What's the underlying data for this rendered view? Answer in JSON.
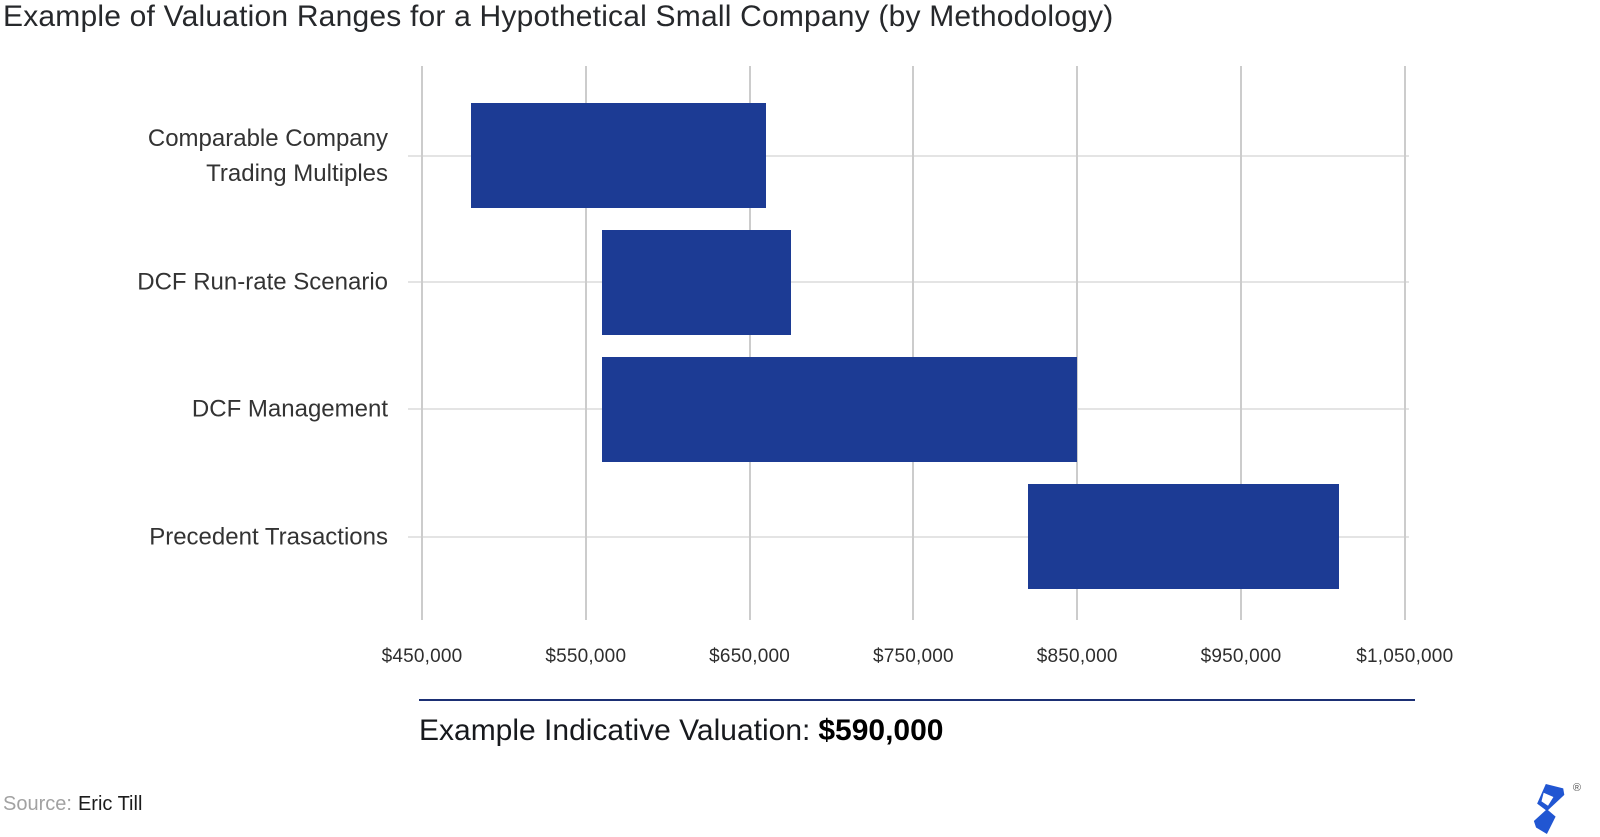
{
  "title": "Example of Valuation Ranges for a Hypothetical Small Company (by Methodology)",
  "chart_data": {
    "type": "bar",
    "subtype": "horizontal-range",
    "title": "Example of Valuation Ranges for a Hypothetical Small Company (by Methodology)",
    "categories": [
      "Comparable Company Trading Multiples",
      "DCF Run-rate Scenario",
      "DCF Management",
      "Precedent Trasactions"
    ],
    "ranges": [
      [
        480000,
        660000
      ],
      [
        560000,
        675000
      ],
      [
        560000,
        850000
      ],
      [
        820000,
        1010000
      ]
    ],
    "x_ticks": [
      {
        "value": 450000,
        "label": "$450,000"
      },
      {
        "value": 550000,
        "label": "$550,000"
      },
      {
        "value": 650000,
        "label": "$650,000"
      },
      {
        "value": 750000,
        "label": "$750,000"
      },
      {
        "value": 850000,
        "label": "$850,000"
      },
      {
        "value": 950000,
        "label": "$950,000"
      },
      {
        "value": 1050000,
        "label": "$1,050,000"
      }
    ],
    "xlim": [
      450000,
      1050000
    ],
    "grid": true,
    "legend": "none",
    "bar_color": "#1c3b94",
    "annotation": {
      "label": "Example Indicative Valuation:",
      "value": "$590,000",
      "line_color": "#1b2f74"
    }
  },
  "source": {
    "prefix": "Source:",
    "name": "Eric Till"
  },
  "logo": {
    "brand": "toptal-logomark",
    "registered": "®",
    "color": "#2156d2"
  }
}
